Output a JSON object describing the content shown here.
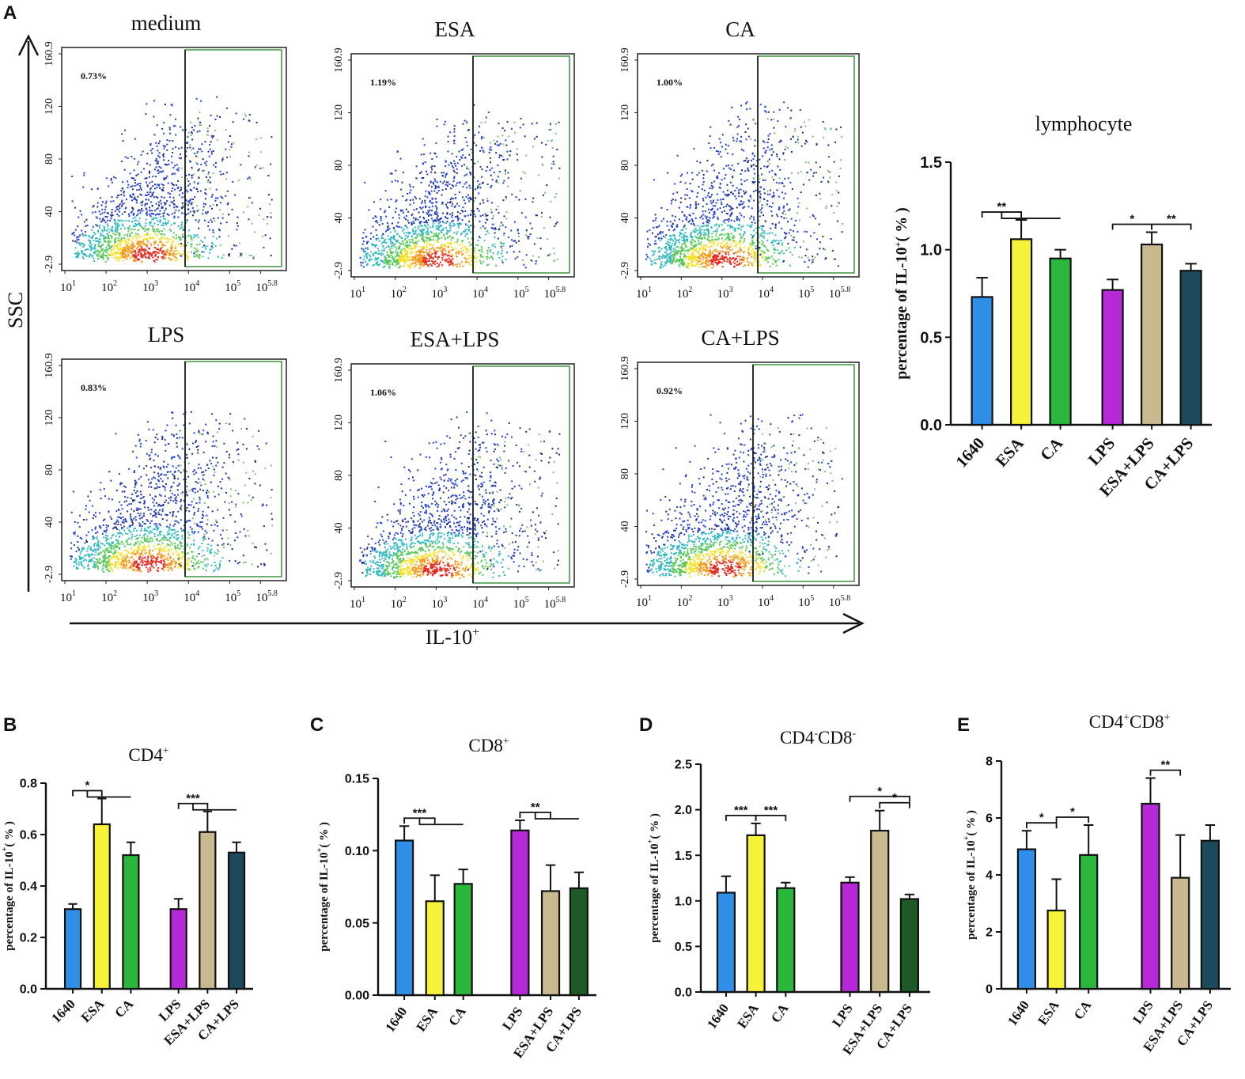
{
  "colors": {
    "c1640": "#2f8fe6",
    "cESA": "#f6f23a",
    "cCA": "#2bb63c",
    "cLPS": "#b52ad6",
    "cESALPS": "#c9b98f",
    "cCALPS": "#1c4a5c",
    "cCALPS_dark": "#1d5a25",
    "gate": "#4a9a4a",
    "axis": "#111111"
  },
  "flow": {
    "panel_letter": "A",
    "y_axis_label": "SSC",
    "x_axis_label": "IL-10",
    "x_axis_sup": "+",
    "y_ticks": [
      "160.9",
      "120",
      "80",
      "40",
      "-2.9"
    ],
    "x_ticks": [
      {
        "base": "10",
        "exp": "1"
      },
      {
        "base": "10",
        "exp": "2"
      },
      {
        "base": "10",
        "exp": "3"
      },
      {
        "base": "10",
        "exp": "4"
      },
      {
        "base": "10",
        "exp": "5"
      },
      {
        "base": "10",
        "exp": "5.8"
      }
    ],
    "plots": [
      {
        "title": "medium",
        "pct": "0.73%"
      },
      {
        "title": "ESA",
        "pct": "1.19%"
      },
      {
        "title": "CA",
        "pct": "1.00%"
      },
      {
        "title": "LPS",
        "pct": "0.83%"
      },
      {
        "title": "ESA+LPS",
        "pct": "1.06%"
      },
      {
        "title": "CA+LPS",
        "pct": "0.92%"
      }
    ]
  },
  "chart_data": [
    {
      "panel": "A",
      "type": "bar",
      "title": "lymphocyte",
      "title_sup": "",
      "title_sup2": "",
      "title_tail": "",
      "ylabel": "percentage of IL-10",
      "ylabel_sup": "+",
      "ylabel_unit": "( % )",
      "categories": [
        "1640",
        "ESA",
        "CA",
        "LPS",
        "ESA+LPS",
        "CA+LPS"
      ],
      "values": [
        0.73,
        1.06,
        0.95,
        0.77,
        1.03,
        0.88
      ],
      "errors": [
        0.11,
        0.11,
        0.05,
        0.06,
        0.07,
        0.04
      ],
      "ylim": [
        0,
        1.5
      ],
      "yticks": [
        "0.0",
        "0.5",
        "1.0",
        "1.5"
      ],
      "colors": [
        "c1640",
        "cESA",
        "cCA",
        "cLPS",
        "cESALPS",
        "cCALPS"
      ],
      "significance": [
        {
          "from": 0,
          "to": 1,
          "to2": 2,
          "label": "**"
        },
        {
          "from": 3,
          "to": 4,
          "label": "*"
        },
        {
          "from": 4,
          "to": 5,
          "label": "**"
        }
      ]
    },
    {
      "panel": "B",
      "type": "bar",
      "title": "CD4",
      "title_sup": "+",
      "title_sup2": "",
      "title_tail": "",
      "ylabel": "percentage of IL-10",
      "ylabel_sup": "+",
      "ylabel_unit": "( % )",
      "categories": [
        "1640",
        "ESA",
        "CA",
        "LPS",
        "ESA+LPS",
        "CA+LPS"
      ],
      "values": [
        0.31,
        0.64,
        0.52,
        0.31,
        0.61,
        0.53
      ],
      "errors": [
        0.02,
        0.1,
        0.05,
        0.04,
        0.08,
        0.04
      ],
      "ylim": [
        0,
        0.8
      ],
      "yticks": [
        "0.0",
        "0.2",
        "0.4",
        "0.6",
        "0.8"
      ],
      "colors": [
        "c1640",
        "cESA",
        "cCA",
        "cLPS",
        "cESALPS",
        "cCALPS"
      ],
      "significance": [
        {
          "from": 0,
          "to": 1,
          "to2": 2,
          "label": "*"
        },
        {
          "from": 3,
          "to": 4,
          "to2": 5,
          "label": "***"
        }
      ]
    },
    {
      "panel": "C",
      "type": "bar",
      "title": "CD8",
      "title_sup": "+",
      "title_sup2": "",
      "title_tail": "",
      "ylabel": "percentage of IL-10",
      "ylabel_sup": "+",
      "ylabel_unit": "( % )",
      "categories": [
        "1640",
        "ESA",
        "CA",
        "LPS",
        "ESA+LPS",
        "CA+LPS"
      ],
      "values": [
        0.107,
        0.065,
        0.077,
        0.114,
        0.072,
        0.074
      ],
      "errors": [
        0.01,
        0.018,
        0.01,
        0.007,
        0.018,
        0.011
      ],
      "ylim": [
        0,
        0.15
      ],
      "yticks": [
        "0.00",
        "0.05",
        "0.10",
        "0.15"
      ],
      "colors": [
        "c1640",
        "cESA",
        "cCA",
        "cLPS",
        "cESALPS",
        "cCALPS_dark"
      ],
      "significance": [
        {
          "from": 0,
          "to": 1,
          "to2": 2,
          "label": "***"
        },
        {
          "from": 3,
          "to": 4,
          "to2": 5,
          "label": "**"
        }
      ]
    },
    {
      "panel": "D",
      "type": "bar",
      "title": "CD4",
      "title_sup": "-",
      "title_tail": "CD8",
      "title_sup2": "-",
      "ylabel": "percentage of IL-10",
      "ylabel_sup": "+",
      "ylabel_unit": "( % )",
      "categories": [
        "1640",
        "ESA",
        "CA",
        "LPS",
        "ESA+LPS",
        "CA+LPS"
      ],
      "values": [
        1.09,
        1.72,
        1.14,
        1.2,
        1.77,
        1.02
      ],
      "errors": [
        0.18,
        0.13,
        0.06,
        0.06,
        0.22,
        0.05
      ],
      "ylim": [
        0,
        2.5
      ],
      "yticks": [
        "0.0",
        "0.5",
        "1.0",
        "1.5",
        "2.0",
        "2.5"
      ],
      "colors": [
        "c1640",
        "cESA",
        "cCA",
        "cLPS",
        "cESALPS",
        "cCALPS_dark"
      ],
      "significance": [
        {
          "from": 0,
          "to": 1,
          "label": "***"
        },
        {
          "from": 1,
          "to": 2,
          "label": "***"
        },
        {
          "from": 3,
          "to": 5,
          "label": "*"
        },
        {
          "from": 4,
          "to": 5,
          "label": "*"
        }
      ]
    },
    {
      "panel": "E",
      "type": "bar",
      "title": "CD4",
      "title_sup": "+",
      "title_tail": "CD8",
      "title_sup2": "+",
      "ylabel": "percentage of IL-10",
      "ylabel_sup": "+",
      "ylabel_unit": "( % )",
      "categories": [
        "1640",
        "ESA",
        "CA",
        "LPS",
        "ESA+LPS",
        "CA+LPS"
      ],
      "values": [
        4.9,
        2.75,
        4.7,
        6.5,
        3.9,
        5.2
      ],
      "errors": [
        0.65,
        1.1,
        1.05,
        0.9,
        1.5,
        0.55
      ],
      "ylim": [
        0,
        8
      ],
      "yticks": [
        "0",
        "2",
        "4",
        "6",
        "8"
      ],
      "colors": [
        "c1640",
        "cESA",
        "cCA",
        "cLPS",
        "cESALPS",
        "cCALPS"
      ],
      "significance": [
        {
          "from": 0,
          "to": 1,
          "label": "*"
        },
        {
          "from": 1,
          "to": 2,
          "label": "*"
        },
        {
          "from": 3,
          "to": 4,
          "label": "**"
        }
      ]
    }
  ]
}
